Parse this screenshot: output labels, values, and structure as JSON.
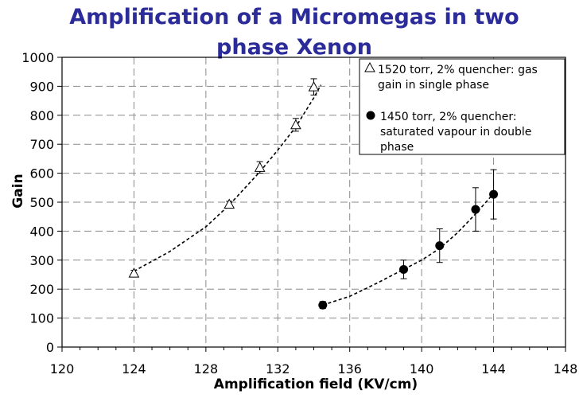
{
  "chart_data": {
    "type": "scatter",
    "title_lines": [
      "Amplification of a Micromegas in two",
      "phase Xenon"
    ],
    "xlabel": "Amplification field (KV/cm)",
    "ylabel": "Gain",
    "xlim": [
      120,
      148
    ],
    "ylim": [
      0,
      1000
    ],
    "x_ticks": [
      "120",
      "124",
      "128",
      "132",
      "136",
      "140",
      "144",
      "148"
    ],
    "y_ticks": [
      "0",
      "100",
      "200",
      "300",
      "400",
      "500",
      "600",
      "700",
      "800",
      "900",
      "1000"
    ],
    "grid": true,
    "legend_position": "top-right",
    "series": [
      {
        "name": "1520 torr, 2% quencher: gas gain in single phase",
        "legend_lines": [
          "1520 torr, 2% quencher: gas",
          "gain in single phase"
        ],
        "marker": "open-triangle",
        "x": [
          124,
          129.3,
          131,
          133,
          134
        ],
        "y": [
          255,
          493,
          620,
          767,
          898
        ],
        "err": [
          10,
          10,
          20,
          22,
          28
        ],
        "trend_x": [
          124,
          126,
          128,
          129.3,
          131,
          132,
          133,
          134,
          134.4
        ],
        "trend_y": [
          262,
          330,
          415,
          490,
          605,
          680,
          760,
          860,
          905
        ]
      },
      {
        "name": "1450 torr, 2% quencher: saturated vapour in double phase",
        "legend_lines": [
          "1450 torr, 2% quencher:",
          "saturated vapour in double",
          "phase"
        ],
        "marker": "filled-circle",
        "x": [
          134.5,
          139,
          141,
          143,
          144
        ],
        "y": [
          145,
          268,
          350,
          475,
          527
        ],
        "err": [
          12,
          32,
          58,
          75,
          85
        ],
        "trend_x": [
          134.5,
          136,
          137.5,
          139,
          140,
          141,
          142,
          143,
          144
        ],
        "trend_y": [
          145,
          175,
          220,
          268,
          300,
          340,
          395,
          460,
          530
        ]
      }
    ]
  }
}
